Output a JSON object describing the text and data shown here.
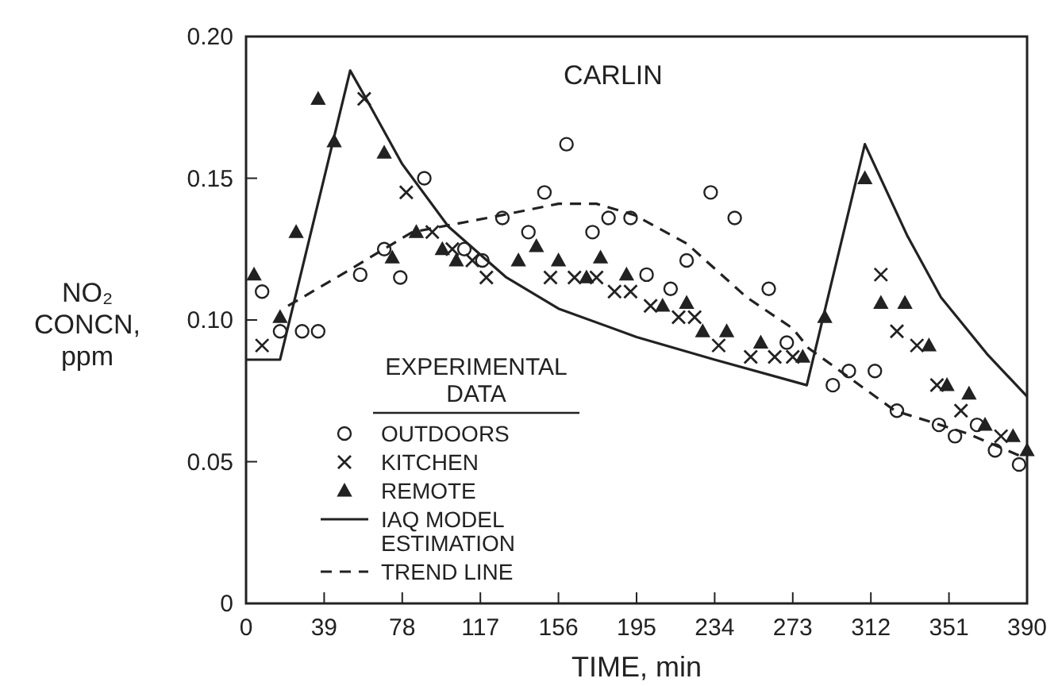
{
  "chart_data": {
    "type": "scatter",
    "title": "CARLIN",
    "xlabel": "TIME, min",
    "ylabel": "NO₂ CONCN, ppm",
    "legend_title": "EXPERIMENTAL DATA",
    "legend": "bottom left",
    "grid": false,
    "xlim": [
      0,
      390
    ],
    "xticks": [
      0,
      39,
      78,
      117,
      156,
      195,
      234,
      273,
      312,
      351,
      390
    ],
    "ylim": [
      0,
      0.2
    ],
    "yticks": [
      0,
      {
        "value": 0.05,
        "label": "0.05"
      },
      {
        "value": 0.1,
        "label": "0.10"
      },
      {
        "value": 0.15,
        "label": "0.15"
      },
      {
        "value": 0.2,
        "label": "0.20"
      }
    ],
    "series": [
      {
        "name": "OUTDOORS",
        "marker": "circle",
        "color": "#222222",
        "x": [
          8,
          17,
          28,
          36,
          57,
          69,
          77,
          89,
          109,
          118,
          128,
          141,
          149,
          160,
          173,
          181,
          192,
          200,
          212,
          220,
          232,
          244,
          261,
          270,
          293,
          301,
          314,
          325,
          346,
          354,
          365,
          374,
          386
        ],
        "values": [
          0.11,
          0.096,
          0.096,
          0.096,
          0.116,
          0.125,
          0.115,
          0.15,
          0.125,
          0.121,
          0.136,
          0.131,
          0.145,
          0.162,
          0.131,
          0.136,
          0.136,
          0.116,
          0.111,
          0.121,
          0.145,
          0.136,
          0.111,
          0.092,
          0.077,
          0.082,
          0.082,
          0.068,
          0.063,
          0.059,
          0.063,
          0.054,
          0.049
        ]
      },
      {
        "name": "KITCHEN",
        "marker": "cross",
        "color": "#222222",
        "x": [
          8,
          59,
          80,
          93,
          103,
          113,
          120,
          152,
          164,
          175,
          184,
          192,
          202,
          216,
          224,
          236,
          252,
          264,
          273,
          317,
          325,
          335,
          345,
          357,
          377
        ],
        "values": [
          0.091,
          0.178,
          0.145,
          0.131,
          0.125,
          0.121,
          0.115,
          0.115,
          0.115,
          0.115,
          0.11,
          0.11,
          0.105,
          0.101,
          0.101,
          0.091,
          0.087,
          0.087,
          0.087,
          0.116,
          0.096,
          0.091,
          0.077,
          0.068,
          0.059
        ]
      },
      {
        "name": "REMOTE",
        "marker": "triangle",
        "color": "#222222",
        "x": [
          4,
          17,
          25,
          36,
          44,
          69,
          73,
          85,
          98,
          105,
          136,
          145,
          156,
          170,
          177,
          190,
          208,
          220,
          228,
          240,
          257,
          278,
          289,
          309,
          317,
          329,
          341,
          350,
          361,
          369,
          383,
          390
        ],
        "values": [
          0.116,
          0.101,
          0.131,
          0.178,
          0.163,
          0.159,
          0.122,
          0.131,
          0.125,
          0.121,
          0.121,
          0.126,
          0.121,
          0.115,
          0.122,
          0.116,
          0.105,
          0.106,
          0.096,
          0.096,
          0.092,
          0.087,
          0.101,
          0.15,
          0.106,
          0.106,
          0.091,
          0.077,
          0.074,
          0.063,
          0.059,
          0.054
        ]
      },
      {
        "name": "IAQ MODEL ESTIMATION",
        "type": "line",
        "line_style": "solid",
        "color": "#222222",
        "x": [
          0,
          17,
          52,
          60,
          78,
          101,
          130,
          156,
          195,
          234,
          280,
          309,
          330,
          347,
          370,
          390
        ],
        "values": [
          0.086,
          0.086,
          0.188,
          0.178,
          0.155,
          0.133,
          0.115,
          0.104,
          0.094,
          0.086,
          0.077,
          0.162,
          0.13,
          0.108,
          0.088,
          0.073
        ]
      },
      {
        "name": "TREND LINE",
        "type": "line",
        "line_style": "dashed",
        "color": "#222222",
        "x": [
          21,
          50,
          83,
          128,
          156,
          175,
          194,
          220,
          250,
          273,
          281,
          324,
          360,
          390
        ],
        "values": [
          0.105,
          0.117,
          0.131,
          0.137,
          0.141,
          0.141,
          0.137,
          0.127,
          0.108,
          0.097,
          0.09,
          0.068,
          0.06,
          0.051
        ]
      }
    ]
  }
}
